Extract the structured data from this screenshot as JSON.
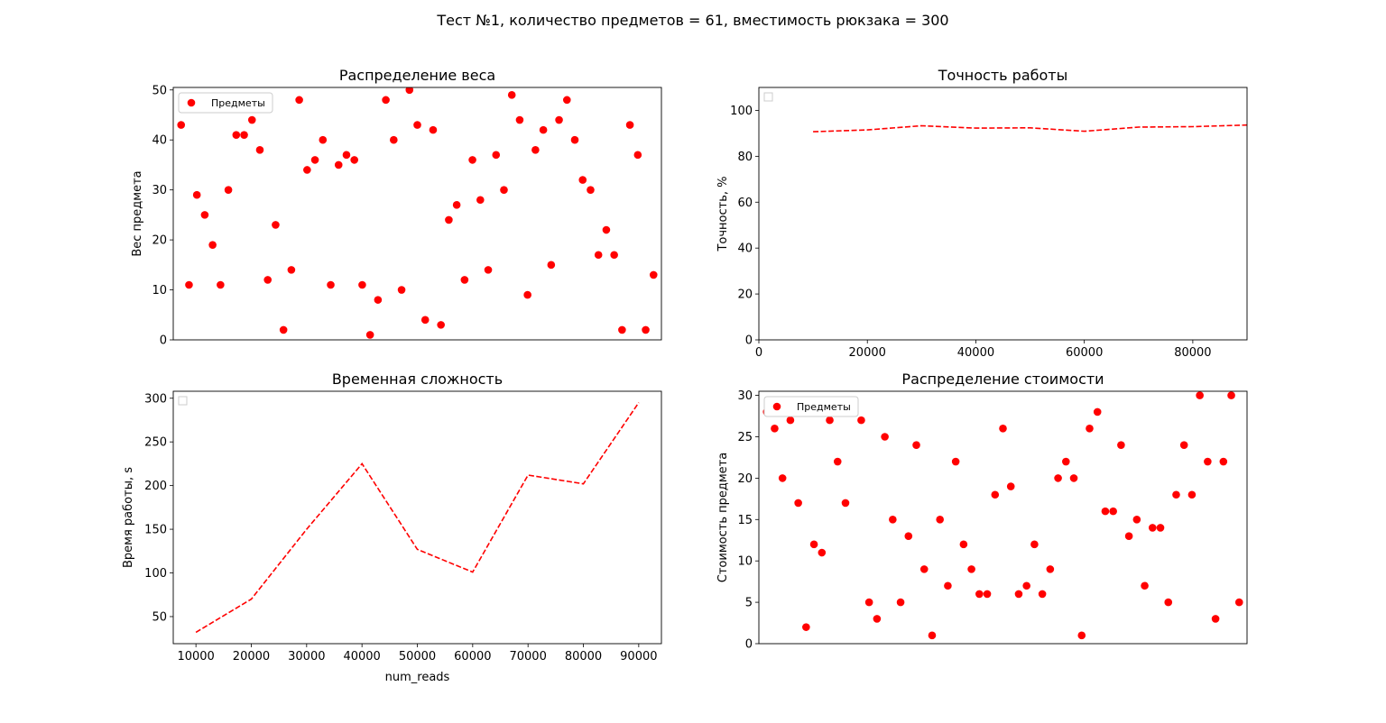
{
  "figure": {
    "suptitle": "Тест №1, количество предметов = 61, вместимость рюкзака = 300",
    "series_color": "#ff0000"
  },
  "chart_data": [
    {
      "id": "weights",
      "type": "scatter",
      "title": "Распределение веса",
      "xlabel": "",
      "ylabel": "Вес предмета",
      "xlim": [
        -1,
        61
      ],
      "ylim": [
        0,
        50.5
      ],
      "yticks": [
        0,
        10,
        20,
        30,
        40,
        50
      ],
      "xticks": [],
      "legend": {
        "label": "Предметы",
        "placement": "upper-left"
      },
      "x": [
        0,
        1,
        2,
        3,
        4,
        5,
        6,
        7,
        8,
        9,
        10,
        11,
        12,
        13,
        14,
        15,
        16,
        17,
        18,
        19,
        20,
        21,
        22,
        23,
        24,
        25,
        26,
        27,
        28,
        29,
        30,
        31,
        32,
        33,
        34,
        35,
        36,
        37,
        38,
        39,
        40,
        41,
        42,
        43,
        44,
        45,
        46,
        47,
        48,
        49,
        50,
        51,
        52,
        53,
        54,
        55,
        56,
        57,
        58,
        59,
        60
      ],
      "y": [
        43,
        11,
        29,
        25,
        19,
        11,
        30,
        41,
        41,
        44,
        38,
        12,
        23,
        2,
        14,
        48,
        34,
        36,
        40,
        11,
        35,
        37,
        36,
        11,
        1,
        8,
        48,
        40,
        10,
        50,
        43,
        4,
        42,
        3,
        24,
        27,
        12,
        36,
        28,
        14,
        37,
        30,
        49,
        44,
        9,
        38,
        42,
        15,
        44,
        48,
        40,
        32,
        30,
        17,
        22,
        17,
        2,
        43,
        37,
        2,
        13
      ]
    },
    {
      "id": "accuracy",
      "type": "line",
      "title": "Точность работы",
      "xlabel": "",
      "ylabel": "Точность, %",
      "xlim": [
        0,
        90000
      ],
      "ylim": [
        0,
        110
      ],
      "xticks": [
        0,
        20000,
        40000,
        60000,
        80000
      ],
      "yticks": [
        0,
        20,
        40,
        60,
        80,
        100
      ],
      "legend": {
        "label": "",
        "placement": "upper-left"
      },
      "line_style": "dashed",
      "x": [
        10000,
        20000,
        30000,
        40000,
        50000,
        60000,
        70000,
        80000,
        90000
      ],
      "y": [
        90.7,
        91.5,
        93.3,
        92.3,
        92.4,
        90.9,
        92.7,
        92.9,
        93.6
      ]
    },
    {
      "id": "time",
      "type": "line",
      "title": "Временная сложность",
      "xlabel": "num_reads",
      "ylabel": "Время работы, s",
      "xlim": [
        5900,
        94100
      ],
      "ylim": [
        19,
        308
      ],
      "xticks": [
        10000,
        20000,
        30000,
        40000,
        50000,
        60000,
        70000,
        80000,
        90000
      ],
      "yticks": [
        50,
        100,
        150,
        200,
        250,
        300
      ],
      "legend": {
        "label": "",
        "placement": "upper-left"
      },
      "line_style": "dashed",
      "x": [
        10000,
        20000,
        30000,
        40000,
        50000,
        60000,
        70000,
        80000,
        90000
      ],
      "y": [
        32,
        70,
        150,
        225,
        127,
        101,
        212,
        202,
        295
      ]
    },
    {
      "id": "values",
      "type": "scatter",
      "title": "Распределение стоимости",
      "xlabel": "",
      "ylabel": "Стоимость предмета",
      "xlim": [
        -1,
        61
      ],
      "ylim": [
        0,
        30.5
      ],
      "xticks": [],
      "yticks": [
        0,
        5,
        10,
        15,
        20,
        25,
        30
      ],
      "legend": {
        "label": "Предметы",
        "placement": "upper-left"
      },
      "x": [
        0,
        1,
        2,
        3,
        4,
        5,
        6,
        7,
        8,
        9,
        10,
        11,
        12,
        13,
        14,
        15,
        16,
        17,
        18,
        19,
        20,
        21,
        22,
        23,
        24,
        25,
        26,
        27,
        28,
        29,
        30,
        31,
        32,
        33,
        34,
        35,
        36,
        37,
        38,
        39,
        40,
        41,
        42,
        43,
        44,
        45,
        46,
        47,
        48,
        49,
        50,
        51,
        52,
        53,
        54,
        55,
        56,
        57,
        58,
        59,
        60
      ],
      "y": [
        28,
        26,
        20,
        27,
        17,
        2,
        12,
        11,
        27,
        22,
        17,
        28,
        27,
        5,
        3,
        25,
        15,
        5,
        13,
        24,
        9,
        1,
        15,
        7,
        22,
        12,
        9,
        6,
        6,
        18,
        26,
        19,
        6,
        7,
        12,
        6,
        9,
        20,
        22,
        20,
        1,
        26,
        28,
        16,
        16,
        24,
        13,
        15,
        7,
        14,
        14,
        5,
        18,
        24,
        18,
        30,
        22,
        3,
        22,
        30,
        5
      ]
    }
  ]
}
